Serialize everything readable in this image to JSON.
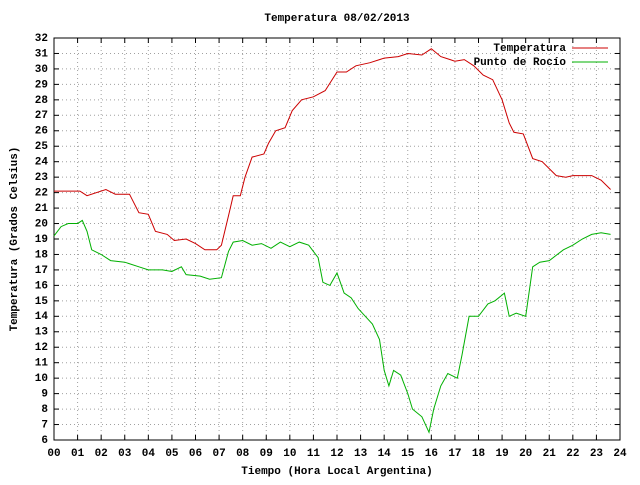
{
  "chart_data": {
    "type": "line",
    "title": "Temperatura 08/02/2013",
    "xlabel": "Tiempo (Hora Local Argentina)",
    "ylabel": "Temperatura (Grados Celsius)",
    "xlim": [
      0,
      24
    ],
    "ylim": [
      6,
      32
    ],
    "xticks": [
      {
        "value": 0,
        "label": "00"
      },
      {
        "value": 1,
        "label": "01"
      },
      {
        "value": 2,
        "label": "02"
      },
      {
        "value": 3,
        "label": "03"
      },
      {
        "value": 4,
        "label": "04"
      },
      {
        "value": 5,
        "label": "05"
      },
      {
        "value": 6,
        "label": "06"
      },
      {
        "value": 7,
        "label": "07"
      },
      {
        "value": 8,
        "label": "08"
      },
      {
        "value": 9,
        "label": "09"
      },
      10,
      11,
      12,
      13,
      14,
      15,
      16,
      17,
      18,
      19,
      20,
      21,
      22,
      23,
      24
    ],
    "yticks": [
      6,
      7,
      8,
      9,
      10,
      11,
      12,
      13,
      14,
      15,
      16,
      17,
      18,
      19,
      20,
      21,
      22,
      23,
      24,
      25,
      26,
      27,
      28,
      29,
      30,
      31,
      32
    ],
    "grid": true,
    "legend": "top-right",
    "series": [
      {
        "name": "Temperatura",
        "color": "#cc0000",
        "x": [
          0,
          1.1,
          1.4,
          2.2,
          2.6,
          3.2,
          3.6,
          4.0,
          4.3,
          4.8,
          5.1,
          5.6,
          6.0,
          6.4,
          6.9,
          7.1,
          7.4,
          7.6,
          7.9,
          8.1,
          8.4,
          8.9,
          9.1,
          9.4,
          9.8,
          10.1,
          10.5,
          11.0,
          11.5,
          12.0,
          12.4,
          12.8,
          13.4,
          14.0,
          14.6,
          15.0,
          15.6,
          16.0,
          16.4,
          16.8,
          17.0,
          17.4,
          17.8,
          18.2,
          18.6,
          19.0,
          19.3,
          19.5,
          19.9,
          20.3,
          20.7,
          21.3,
          21.7,
          22.0,
          22.8,
          23.2,
          23.6
        ],
        "values": [
          22.1,
          22.1,
          21.8,
          22.2,
          21.9,
          21.9,
          20.7,
          20.6,
          19.5,
          19.3,
          18.9,
          19.0,
          18.7,
          18.3,
          18.3,
          18.6,
          20.5,
          21.8,
          21.8,
          23.0,
          24.3,
          24.5,
          25.2,
          26.0,
          26.2,
          27.3,
          28.0,
          28.2,
          28.6,
          29.8,
          29.8,
          30.2,
          30.4,
          30.7,
          30.8,
          31.0,
          30.9,
          31.3,
          30.8,
          30.6,
          30.5,
          30.6,
          30.2,
          29.6,
          29.3,
          28.0,
          26.5,
          25.9,
          25.8,
          24.2,
          24.0,
          23.1,
          23.0,
          23.1,
          23.1,
          22.8,
          22.2
        ]
      },
      {
        "name": "Punto de Rocío",
        "color": "#00b000",
        "x": [
          0,
          0.3,
          0.6,
          1.0,
          1.2,
          1.4,
          1.6,
          2.0,
          2.4,
          3.0,
          3.6,
          4.0,
          4.6,
          5.0,
          5.4,
          5.6,
          6.2,
          6.6,
          7.1,
          7.4,
          7.6,
          8.0,
          8.4,
          8.8,
          9.2,
          9.6,
          10.0,
          10.4,
          10.8,
          11.0,
          11.2,
          11.4,
          11.7,
          12.0,
          12.3,
          12.6,
          12.9,
          13.2,
          13.5,
          13.8,
          14.0,
          14.2,
          14.4,
          14.7,
          15.0,
          15.2,
          15.6,
          15.9,
          16.1,
          16.4,
          16.7,
          17.1,
          17.3,
          17.6,
          18.0,
          18.4,
          18.7,
          19.1,
          19.3,
          19.6,
          20.0,
          20.3,
          20.6,
          21.0,
          21.6,
          22.0,
          22.4,
          22.8,
          23.2,
          23.6
        ],
        "values": [
          19.2,
          19.8,
          20.0,
          20.0,
          20.2,
          19.5,
          18.3,
          18.0,
          17.6,
          17.5,
          17.2,
          17.0,
          17.0,
          16.9,
          17.2,
          16.7,
          16.6,
          16.4,
          16.5,
          18.2,
          18.8,
          18.9,
          18.6,
          18.7,
          18.4,
          18.8,
          18.5,
          18.8,
          18.6,
          18.2,
          17.8,
          16.2,
          16.0,
          16.8,
          15.5,
          15.2,
          14.5,
          14.0,
          13.5,
          12.5,
          10.5,
          9.5,
          10.5,
          10.2,
          9.0,
          8.0,
          7.5,
          6.5,
          8.0,
          9.5,
          10.3,
          10.0,
          11.5,
          14.0,
          14.0,
          14.8,
          15.0,
          15.5,
          14.0,
          14.2,
          14.0,
          17.2,
          17.5,
          17.6,
          18.3,
          18.6,
          19.0,
          19.3,
          19.4,
          19.3
        ]
      }
    ]
  }
}
